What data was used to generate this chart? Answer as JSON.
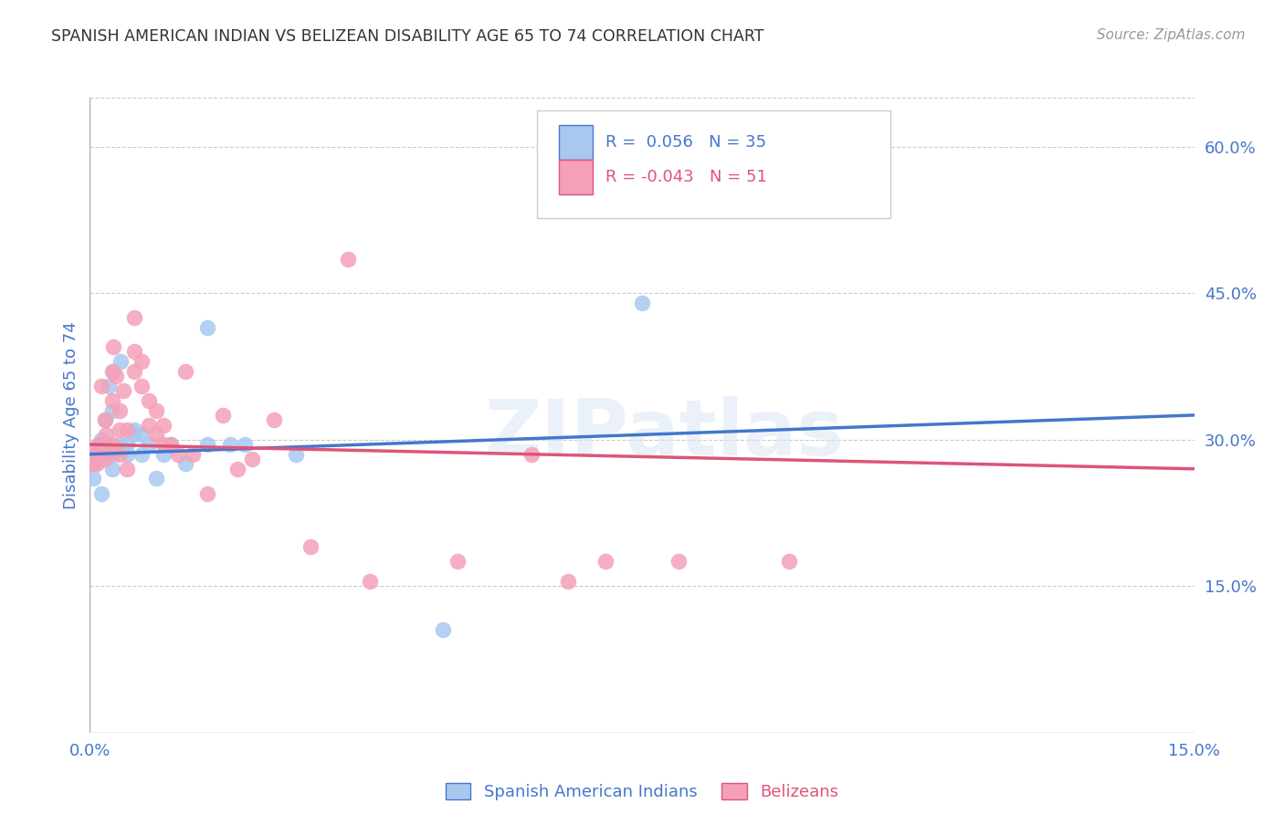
{
  "title": "SPANISH AMERICAN INDIAN VS BELIZEAN DISABILITY AGE 65 TO 74 CORRELATION CHART",
  "source": "Source: ZipAtlas.com",
  "ylabel": "Disability Age 65 to 74",
  "xlim": [
    0.0,
    0.15
  ],
  "ylim": [
    0.0,
    0.65
  ],
  "yticks": [
    0.15,
    0.3,
    0.45,
    0.6
  ],
  "ytick_labels": [
    "15.0%",
    "30.0%",
    "45.0%",
    "60.0%"
  ],
  "xticks": [
    0.0,
    0.03,
    0.06,
    0.09,
    0.12,
    0.15
  ],
  "xtick_labels": [
    "0.0%",
    "",
    "",
    "",
    "",
    "15.0%"
  ],
  "r_blue": 0.056,
  "n_blue": 35,
  "r_pink": -0.043,
  "n_pink": 51,
  "blue_color": "#A8C8F0",
  "pink_color": "#F4A0B8",
  "line_blue": "#4477CC",
  "line_pink": "#DD5577",
  "watermark": "ZIPatlas",
  "legend_label_blue": "Spanish American Indians",
  "legend_label_pink": "Belizeans",
  "blue_scatter_x": [
    0.0005,
    0.0008,
    0.001,
    0.0012,
    0.0015,
    0.0015,
    0.002,
    0.002,
    0.0022,
    0.0025,
    0.003,
    0.003,
    0.003,
    0.0032,
    0.004,
    0.004,
    0.0042,
    0.005,
    0.005,
    0.006,
    0.006,
    0.007,
    0.007,
    0.008,
    0.009,
    0.01,
    0.011,
    0.013,
    0.016,
    0.016,
    0.019,
    0.021,
    0.028,
    0.048,
    0.075
  ],
  "blue_scatter_y": [
    0.26,
    0.285,
    0.28,
    0.295,
    0.3,
    0.245,
    0.32,
    0.285,
    0.295,
    0.355,
    0.27,
    0.285,
    0.33,
    0.37,
    0.295,
    0.29,
    0.38,
    0.295,
    0.285,
    0.31,
    0.305,
    0.285,
    0.305,
    0.295,
    0.26,
    0.285,
    0.295,
    0.275,
    0.295,
    0.415,
    0.295,
    0.295,
    0.285,
    0.105,
    0.44
  ],
  "pink_scatter_x": [
    0.0004,
    0.0006,
    0.0008,
    0.001,
    0.0012,
    0.0014,
    0.0016,
    0.002,
    0.002,
    0.0022,
    0.0025,
    0.003,
    0.003,
    0.003,
    0.0032,
    0.0035,
    0.004,
    0.004,
    0.004,
    0.0045,
    0.005,
    0.005,
    0.006,
    0.006,
    0.006,
    0.007,
    0.007,
    0.008,
    0.008,
    0.009,
    0.009,
    0.01,
    0.01,
    0.011,
    0.012,
    0.013,
    0.014,
    0.016,
    0.018,
    0.02,
    0.022,
    0.025,
    0.03,
    0.035,
    0.038,
    0.05,
    0.06,
    0.065,
    0.07,
    0.08,
    0.095
  ],
  "pink_scatter_y": [
    0.275,
    0.28,
    0.29,
    0.275,
    0.295,
    0.285,
    0.355,
    0.28,
    0.32,
    0.305,
    0.29,
    0.37,
    0.34,
    0.295,
    0.395,
    0.365,
    0.33,
    0.31,
    0.285,
    0.35,
    0.31,
    0.27,
    0.425,
    0.39,
    0.37,
    0.38,
    0.355,
    0.34,
    0.315,
    0.33,
    0.305,
    0.315,
    0.295,
    0.295,
    0.285,
    0.37,
    0.285,
    0.245,
    0.325,
    0.27,
    0.28,
    0.32,
    0.19,
    0.485,
    0.155,
    0.175,
    0.285,
    0.155,
    0.175,
    0.175,
    0.175
  ]
}
